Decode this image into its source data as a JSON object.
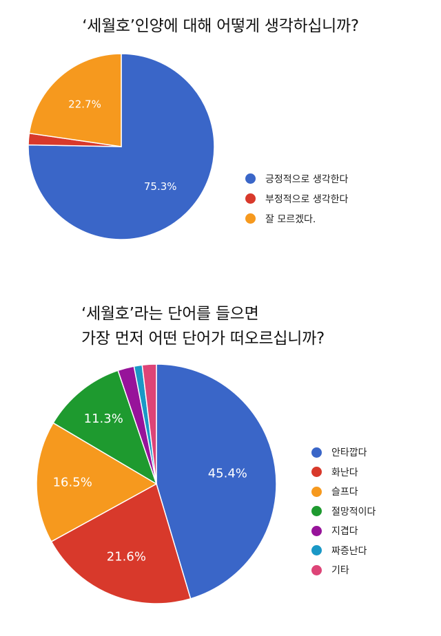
{
  "chart_data": [
    {
      "type": "pie",
      "title": "‘세월호’인양에 대해 어떻게 생각하십니까?",
      "categories": [
        "긍정적으로 생각한다",
        "부정적으로 생각한다",
        "잘 모르겠다."
      ],
      "values": [
        75.3,
        2.0,
        22.7
      ],
      "data_labels": [
        "75.3%",
        "",
        "22.7%"
      ],
      "colors": [
        "#3a66c8",
        "#d8392b",
        "#f6991e"
      ],
      "legend_position": "right"
    },
    {
      "type": "pie",
      "title": "‘세월호’라는 단어를 들으면",
      "subtitle": "가장 먼저 어떤 단어가 떠오르십니까?",
      "categories": [
        "안타깝다",
        "화난다",
        "슬프다",
        "절망적이다",
        "지겹다",
        "짜증난다",
        "기타"
      ],
      "values": [
        45.4,
        21.6,
        16.5,
        11.3,
        2.2,
        1.1,
        1.9
      ],
      "data_labels": [
        "45.4%",
        "21.6%",
        "16.5%",
        "11.3%",
        "",
        "",
        ""
      ],
      "colors": [
        "#3a66c8",
        "#d8392b",
        "#f6991e",
        "#1e9a2f",
        "#97139a",
        "#1a98c6",
        "#dd4477"
      ],
      "legend_position": "right"
    }
  ]
}
